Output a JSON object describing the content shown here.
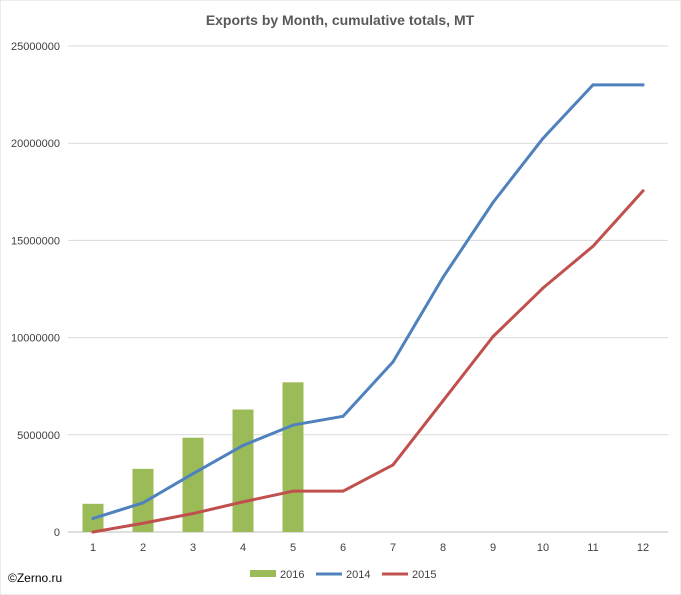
{
  "chart_data": {
    "type": "bar",
    "title": "Exports by Month, cumulative totals, MT",
    "categories": [
      "1",
      "2",
      "3",
      "4",
      "5",
      "6",
      "7",
      "8",
      "9",
      "10",
      "11",
      "12"
    ],
    "ylim": [
      0,
      25000000
    ],
    "yticks": [
      "0",
      "5000000",
      "10000000",
      "15000000",
      "20000000",
      "25000000"
    ],
    "grid": true,
    "legend_position": "bottom",
    "series": [
      {
        "name": "2016",
        "type": "bar",
        "color": "#9BBB59",
        "values": [
          1450000,
          3250000,
          4850000,
          6300000,
          7700000,
          null,
          null,
          null,
          null,
          null,
          null,
          null
        ]
      },
      {
        "name": "2014",
        "type": "line",
        "color": "#4F81BD",
        "values": [
          700000,
          1500000,
          3000000,
          4450000,
          5500000,
          5950000,
          8750000,
          13100000,
          16950000,
          20250000,
          23000000,
          23000000
        ]
      },
      {
        "name": "2015",
        "type": "line",
        "color": "#C0504D",
        "values": [
          0,
          450000,
          950000,
          1550000,
          2100000,
          2100000,
          3450000,
          6750000,
          10050000,
          12550000,
          14700000,
          17550000
        ]
      }
    ]
  },
  "credit": "©Zerno.ru"
}
